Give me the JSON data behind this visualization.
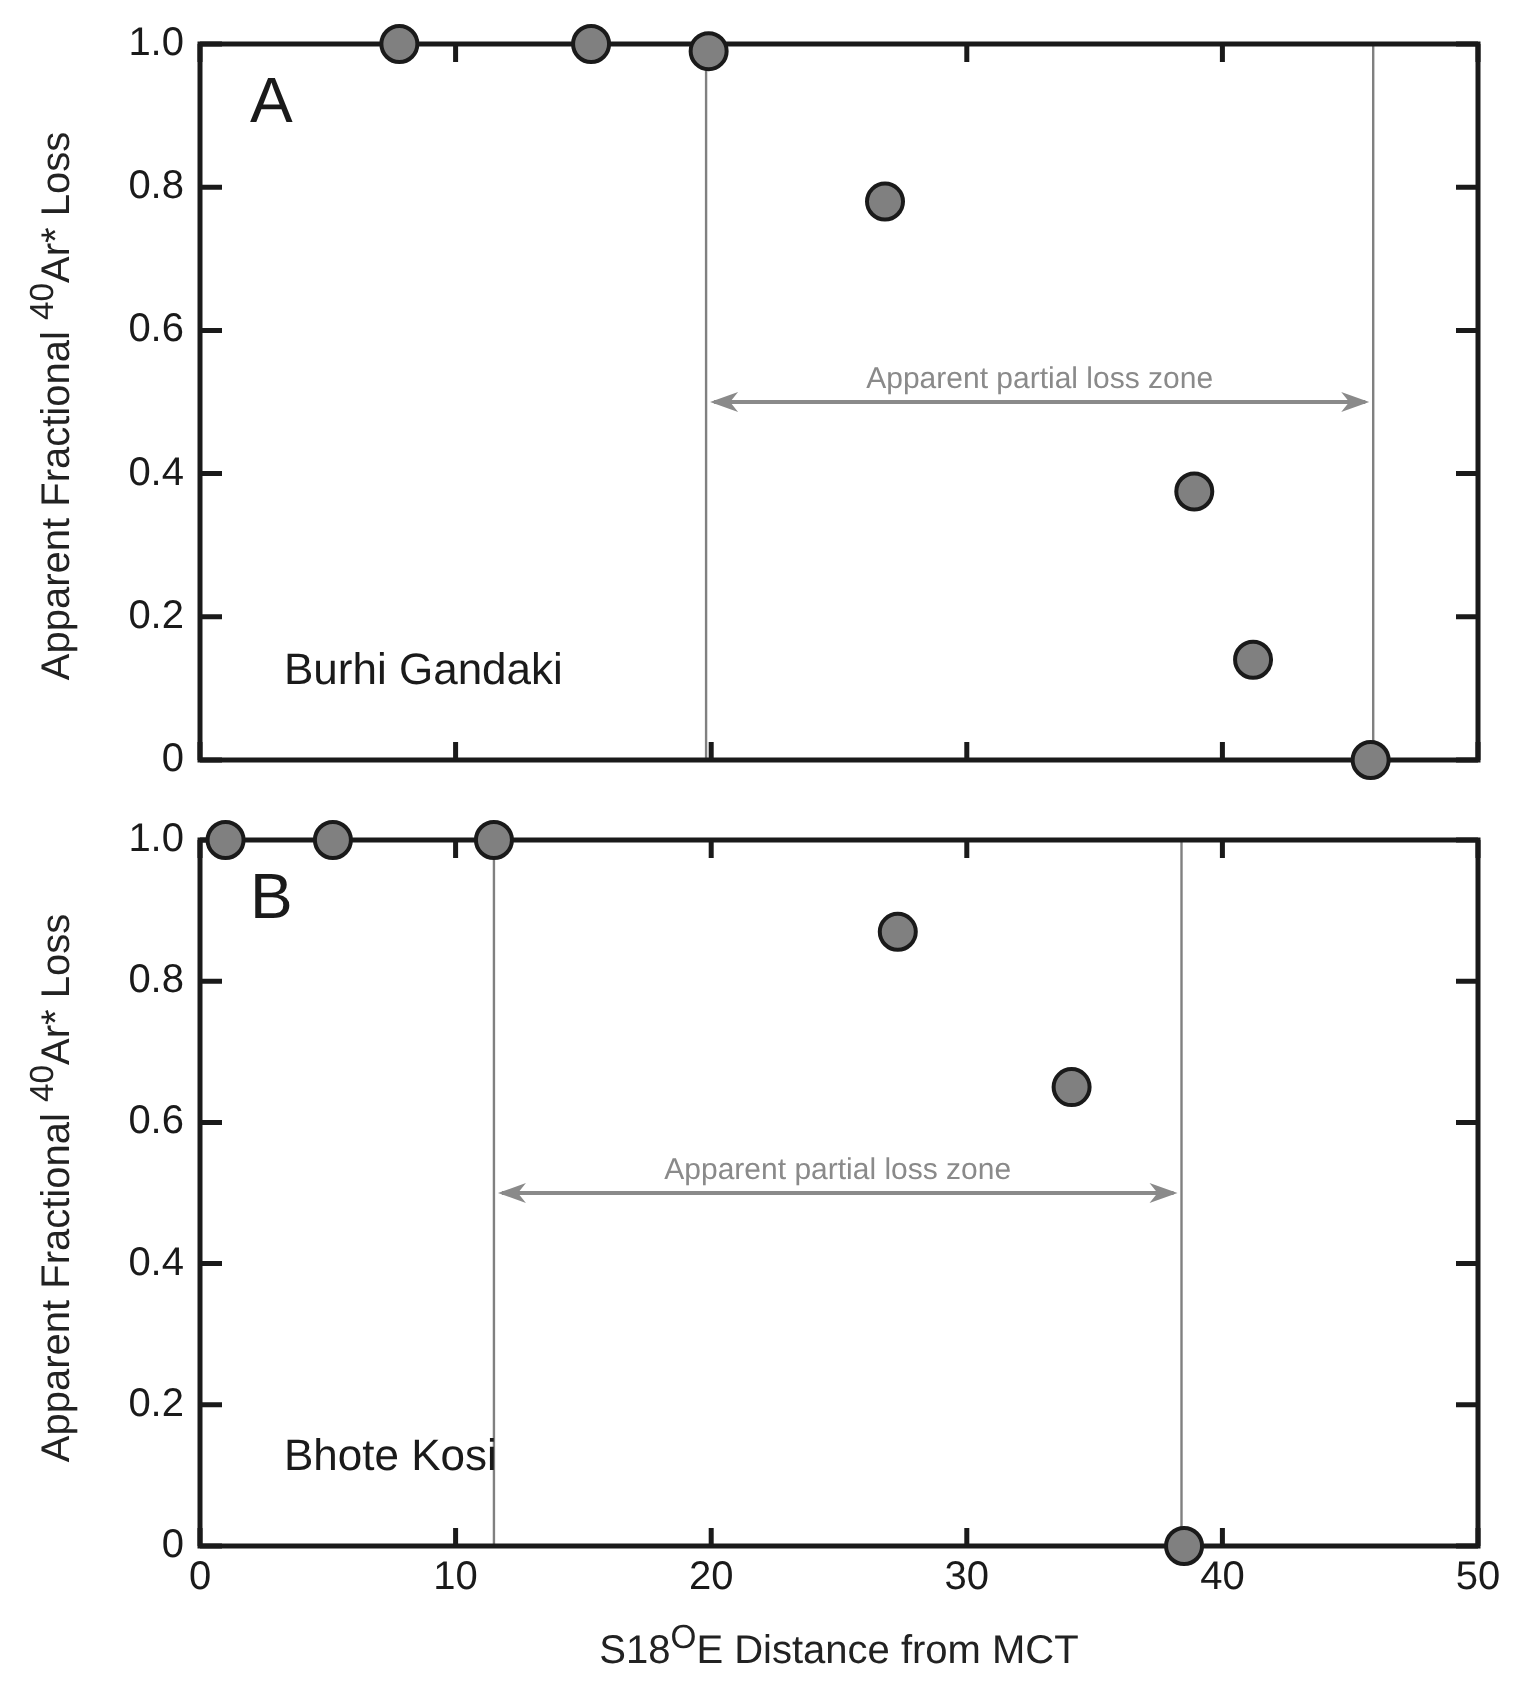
{
  "chart_data": [
    {
      "type": "scatter",
      "title": "A",
      "ylabel": "Apparent Fractional $^{40}$Ar* Loss",
      "x": [
        7.8,
        15.3,
        19.9,
        26.8,
        38.9,
        41.2,
        45.8
      ],
      "values": [
        1.0,
        1.0,
        0.99,
        0.78,
        0.375,
        0.14,
        0
      ],
      "color": "#808080",
      "marker": "circle",
      "xlim": [
        0,
        50
      ],
      "xticks": [
        0,
        10,
        20,
        30,
        40,
        50
      ],
      "ylim": [
        0,
        1
      ],
      "yticks": [
        0,
        {
          "value": 0.2,
          "label": "0.2"
        },
        {
          "value": 0.4,
          "label": "0.4"
        },
        {
          "value": 0.6,
          "label": "0.6"
        },
        {
          "value": 0.8,
          "label": "0.8"
        },
        {
          "value": 1,
          "label": "1.0"
        }
      ],
      "tick_labels": "y",
      "grid": false,
      "legend": false,
      "ref_lines": [
        {
          "axis": "x",
          "value": 19.8,
          "color": "#808080"
        },
        {
          "axis": "x",
          "value": 45.9,
          "color": "#808080"
        }
      ],
      "annotations": [
        "Burhi Gandaki",
        "Apparent partial loss zone"
      ]
    },
    {
      "type": "scatter",
      "title": "B",
      "xlabel": "S18$^{O}$E Distance from MCT",
      "ylabel": "Apparent Fractional $^{40}$Ar* Loss",
      "x": [
        1.0,
        5.2,
        11.5,
        27.3,
        34.1,
        38.5
      ],
      "values": [
        1.0,
        1.0,
        1.0,
        0.87,
        0.65,
        0
      ],
      "color": "#808080",
      "marker": "circle",
      "xlim": [
        0,
        50
      ],
      "xticks": [
        0,
        10,
        20,
        30,
        40,
        50
      ],
      "ylim": [
        0,
        1
      ],
      "yticks": [
        0,
        {
          "value": 0.2,
          "label": "0.2"
        },
        {
          "value": 0.4,
          "label": "0.4"
        },
        {
          "value": 0.6,
          "label": "0.6"
        },
        {
          "value": 0.8,
          "label": "0.8"
        },
        {
          "value": 1,
          "label": "1.0"
        }
      ],
      "grid": false,
      "legend": false,
      "ref_lines": [
        {
          "axis": "x",
          "value": 11.5,
          "color": "#808080"
        },
        {
          "axis": "x",
          "value": 38.4,
          "color": "#808080"
        }
      ],
      "annotations": [
        "Bhote Kosi",
        "Apparent partial loss zone"
      ]
    }
  ]
}
